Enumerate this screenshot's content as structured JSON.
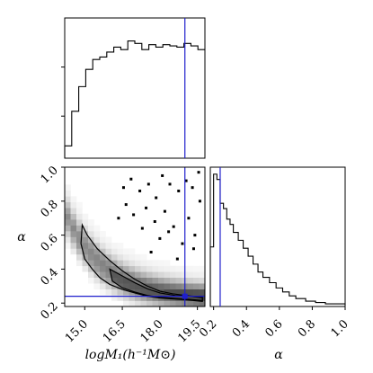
{
  "chart_data": {
    "type": "corner",
    "parameters": [
      {
        "name": "logM1",
        "label": "logM₁(h⁻¹M⊙)",
        "range": [
          14.2,
          19.8
        ],
        "ticks": [
          15.0,
          16.5,
          18.0,
          19.5
        ],
        "tick_labels": [
          "15.0",
          "16.5",
          "18.0",
          "19.5"
        ],
        "truth": 19.0
      },
      {
        "name": "alpha",
        "label": "α",
        "range": [
          0.18,
          1.0
        ],
        "ticks": [
          0.2,
          0.4,
          0.6,
          0.8,
          1.0
        ],
        "tick_labels": [
          "0.2",
          "0.4",
          "0.6",
          "0.8",
          "1.0"
        ],
        "truth": 0.24
      }
    ],
    "hist_logM1": {
      "bin_edges": [
        14.2,
        14.48,
        14.76,
        15.04,
        15.32,
        15.6,
        15.88,
        16.16,
        16.44,
        16.72,
        17.0,
        17.28,
        17.56,
        17.84,
        18.12,
        18.4,
        18.68,
        18.96,
        19.24,
        19.52,
        19.8
      ],
      "counts": [
        0.1,
        0.38,
        0.58,
        0.72,
        0.8,
        0.82,
        0.86,
        0.9,
        0.88,
        0.95,
        0.93,
        0.88,
        0.92,
        0.9,
        0.92,
        0.91,
        0.9,
        0.93,
        0.91,
        0.88
      ]
    },
    "hist_alpha": {
      "bin_edges": [
        0.18,
        0.2,
        0.22,
        0.24,
        0.26,
        0.28,
        0.3,
        0.32,
        0.35,
        0.38,
        0.41,
        0.44,
        0.47,
        0.5,
        0.54,
        0.58,
        0.62,
        0.66,
        0.7,
        0.76,
        0.82,
        0.88,
        1.0
      ],
      "counts": [
        0.45,
        1.0,
        0.96,
        0.78,
        0.74,
        0.66,
        0.62,
        0.56,
        0.5,
        0.44,
        0.38,
        0.32,
        0.26,
        0.22,
        0.18,
        0.14,
        0.11,
        0.08,
        0.06,
        0.04,
        0.03,
        0.02
      ]
    },
    "contours": [
      {
        "level": "outer",
        "points": [
          [
            14.9,
            0.66
          ],
          [
            15.1,
            0.6
          ],
          [
            15.5,
            0.52
          ],
          [
            16.0,
            0.45
          ],
          [
            16.5,
            0.39
          ],
          [
            17.0,
            0.34
          ],
          [
            17.5,
            0.3
          ],
          [
            18.0,
            0.27
          ],
          [
            18.5,
            0.255
          ],
          [
            19.0,
            0.245
          ],
          [
            19.7,
            0.235
          ],
          [
            19.7,
            0.21
          ],
          [
            19.0,
            0.22
          ],
          [
            18.5,
            0.225
          ],
          [
            18.0,
            0.23
          ],
          [
            17.5,
            0.24
          ],
          [
            17.0,
            0.26
          ],
          [
            16.5,
            0.28
          ],
          [
            16.0,
            0.31
          ],
          [
            15.6,
            0.35
          ],
          [
            15.3,
            0.4
          ],
          [
            15.0,
            0.46
          ],
          [
            14.85,
            0.55
          ],
          [
            14.9,
            0.66
          ]
        ]
      },
      {
        "level": "inner",
        "points": [
          [
            16.0,
            0.4
          ],
          [
            16.5,
            0.36
          ],
          [
            17.0,
            0.32
          ],
          [
            17.5,
            0.285
          ],
          [
            18.0,
            0.26
          ],
          [
            18.6,
            0.245
          ],
          [
            19.2,
            0.24
          ],
          [
            19.7,
            0.232
          ],
          [
            19.7,
            0.215
          ],
          [
            19.2,
            0.222
          ],
          [
            18.6,
            0.228
          ],
          [
            18.0,
            0.235
          ],
          [
            17.5,
            0.245
          ],
          [
            17.0,
            0.265
          ],
          [
            16.5,
            0.29
          ],
          [
            16.1,
            0.33
          ],
          [
            16.0,
            0.4
          ]
        ]
      }
    ],
    "scatter_points": [
      [
        16.55,
        0.88
      ],
      [
        16.85,
        0.93
      ],
      [
        17.2,
        0.86
      ],
      [
        17.55,
        0.9
      ],
      [
        17.85,
        0.82
      ],
      [
        18.1,
        0.95
      ],
      [
        18.4,
        0.9
      ],
      [
        18.75,
        0.86
      ],
      [
        19.05,
        0.92
      ],
      [
        19.3,
        0.88
      ],
      [
        19.55,
        0.97
      ],
      [
        16.65,
        0.78
      ],
      [
        16.95,
        0.72
      ],
      [
        17.45,
        0.76
      ],
      [
        17.8,
        0.68
      ],
      [
        18.2,
        0.74
      ],
      [
        18.55,
        0.65
      ],
      [
        19.15,
        0.7
      ],
      [
        19.4,
        0.6
      ],
      [
        17.3,
        0.64
      ],
      [
        18.0,
        0.58
      ],
      [
        18.9,
        0.55
      ],
      [
        19.35,
        0.52
      ],
      [
        16.35,
        0.7
      ],
      [
        19.6,
        0.8
      ],
      [
        17.65,
        0.5
      ],
      [
        18.7,
        0.46
      ],
      [
        18.35,
        0.62
      ]
    ],
    "xlabel": "logM₁(h⁻¹M⊙)",
    "ylabel": "α",
    "grid": false
  }
}
